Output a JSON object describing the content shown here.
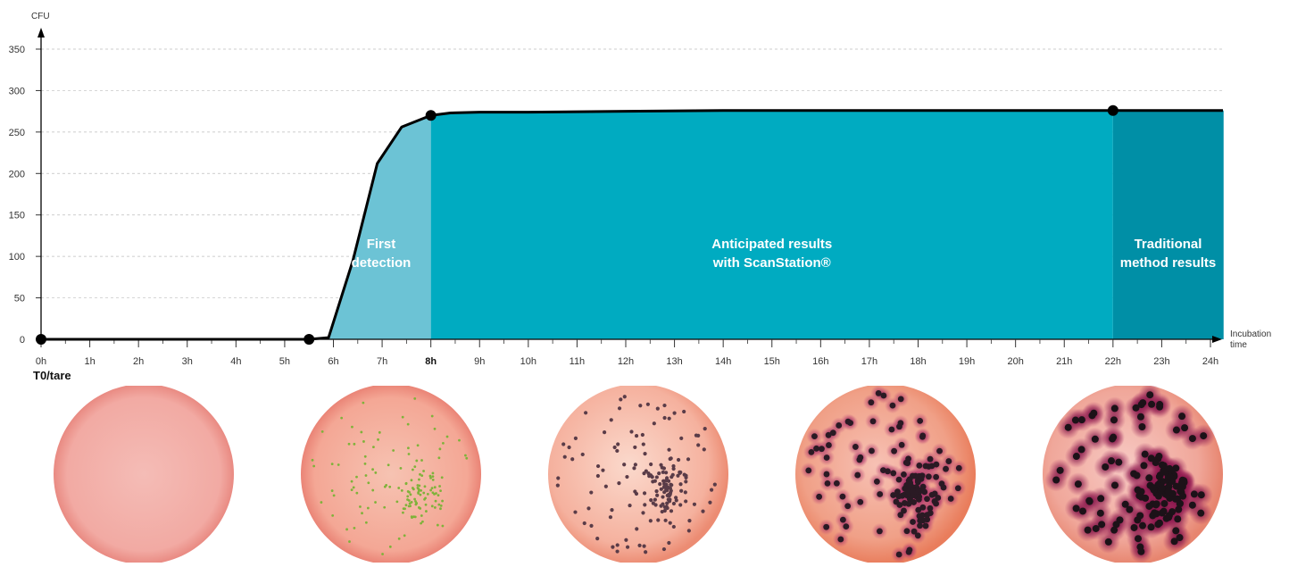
{
  "chart_data": {
    "type": "area",
    "ylabel": "CFU",
    "xlabel_lines": [
      "Incubation",
      "time"
    ],
    "ylim": [
      0,
      350
    ],
    "xlim": [
      0,
      24
    ],
    "y_ticks": [
      "0",
      "50",
      "100",
      "150",
      "200",
      "250",
      "300",
      "350"
    ],
    "x_ticks": [
      "0h",
      "1h",
      "2h",
      "3h",
      "4h",
      "5h",
      "6h",
      "7h",
      "8h",
      "9h",
      "10h",
      "11h",
      "12h",
      "13h",
      "14h",
      "15h",
      "16h",
      "17h",
      "18h",
      "19h",
      "20h",
      "21h",
      "22h",
      "23h",
      "24h"
    ],
    "highlight_tick": "8h",
    "grid": "horizontal-dashed",
    "series": [
      {
        "x": [
          0,
          5.5,
          5.9,
          6.4,
          6.9,
          7.4,
          8.0,
          8.4,
          9.0,
          10,
          12,
          14,
          16,
          18,
          20,
          22,
          24
        ],
        "y": [
          0,
          0,
          2,
          95,
          212,
          256,
          270,
          273,
          274,
          274,
          275,
          276,
          276,
          276,
          276,
          276,
          276
        ]
      }
    ],
    "markers": [
      {
        "x": 0,
        "y": 0
      },
      {
        "x": 5.5,
        "y": 0
      },
      {
        "x": 8,
        "y": 270
      },
      {
        "x": 22,
        "y": 276
      }
    ],
    "zones": [
      {
        "from": 5.5,
        "to": 8,
        "label": [
          "First",
          "detection"
        ],
        "color": "#6cc3d5"
      },
      {
        "from": 8,
        "to": 22,
        "label": [
          "Anticipated results",
          "with ScanStation®"
        ],
        "color": "#00abc1"
      },
      {
        "from": 22,
        "to": 24,
        "label": [
          "Traditional",
          "method results"
        ],
        "color": "#008fa6"
      }
    ]
  },
  "t0_label": "T0/tare",
  "plates": [
    {
      "stage": "0h",
      "colonies": "none"
    },
    {
      "stage": "first-detection",
      "colonies": "tiny-green"
    },
    {
      "stage": "anticipated",
      "colonies": "small-dark"
    },
    {
      "stage": "growing",
      "colonies": "haloed"
    },
    {
      "stage": "traditional",
      "colonies": "large-haloed"
    }
  ]
}
